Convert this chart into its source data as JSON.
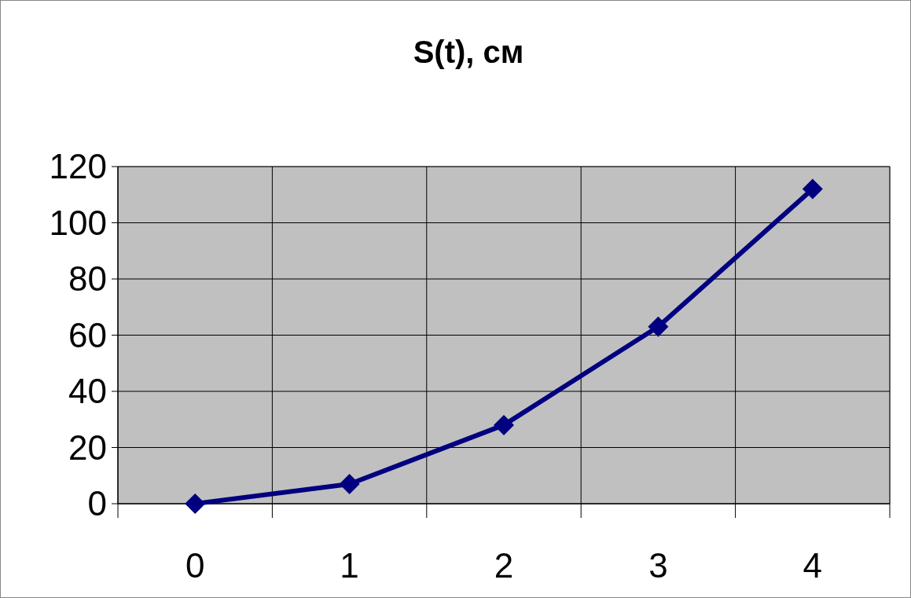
{
  "chart_data": {
    "type": "line",
    "title": "S(t), см",
    "categories": [
      "0",
      "1",
      "2",
      "3",
      "4"
    ],
    "series": [
      {
        "color": "#000080",
        "values": [
          0,
          7,
          28,
          63,
          112
        ]
      }
    ],
    "ylim": [
      0,
      120
    ],
    "yticks": [
      0,
      20,
      40,
      60,
      80,
      100,
      120
    ],
    "grid": true,
    "marker": "diamond",
    "line_style": "solid"
  }
}
